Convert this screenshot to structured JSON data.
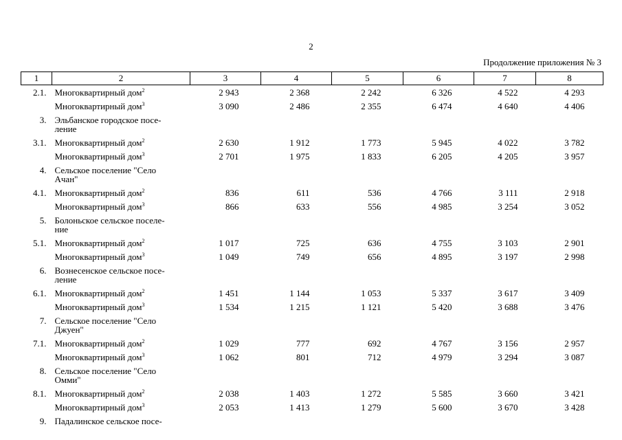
{
  "page_number": "2",
  "caption": "Продолжение приложения № 3",
  "table": {
    "header": [
      "1",
      "2",
      "3",
      "4",
      "5",
      "6",
      "7",
      "8"
    ],
    "rows": [
      {
        "num": "2.1.",
        "name": "Многоквартирный дом",
        "note": "2",
        "values": [
          "2 943",
          "2 368",
          "2 242",
          "6 326",
          "4 522",
          "4 293"
        ]
      },
      {
        "name": "Многоквартирный дом",
        "note": "3",
        "values": [
          "3 090",
          "2 486",
          "2 355",
          "6 474",
          "4 640",
          "4 406"
        ]
      },
      {
        "num": "3.",
        "name": "Эльбанское городское посе-\nление"
      },
      {
        "num": "3.1.",
        "name": "Многоквартирный дом",
        "note": "2",
        "values": [
          "2 630",
          "1 912",
          "1 773",
          "5 945",
          "4 022",
          "3 782"
        ]
      },
      {
        "name": "Многоквартирный дом",
        "note": "3",
        "values": [
          "2 701",
          "1 975",
          "1 833",
          "6 205",
          "4 205",
          "3 957"
        ]
      },
      {
        "num": "4.",
        "name": "Сельское поселение \"Село\nАчан\""
      },
      {
        "num": "4.1.",
        "name": "Многоквартирный дом",
        "note": "2",
        "values": [
          "836",
          "611",
          "536",
          "4 766",
          "3 111",
          "2 918"
        ]
      },
      {
        "name": "Многоквартирный дом",
        "note": "3",
        "values": [
          "866",
          "633",
          "556",
          "4 985",
          "3 254",
          "3 052"
        ]
      },
      {
        "num": "5.",
        "name": "Болоньское сельское поселе-\nние"
      },
      {
        "num": "5.1.",
        "name": "Многоквартирный дом",
        "note": "2",
        "values": [
          "1 017",
          "725",
          "636",
          "4 755",
          "3 103",
          "2 901"
        ]
      },
      {
        "name": "Многоквартирный дом",
        "note": "3",
        "values": [
          "1 049",
          "749",
          "656",
          "4 895",
          "3 197",
          "2 998"
        ]
      },
      {
        "num": "6.",
        "name": "Вознесенское сельское посе-\nление"
      },
      {
        "num": "6.1.",
        "name": "Многоквартирный дом",
        "note": "2",
        "values": [
          "1 451",
          "1 144",
          "1 053",
          "5 337",
          "3 617",
          "3 409"
        ]
      },
      {
        "name": "Многоквартирный дом",
        "note": "3",
        "values": [
          "1 534",
          "1 215",
          "1 121",
          "5 420",
          "3 688",
          "3 476"
        ]
      },
      {
        "num": "7.",
        "name": "Сельское поселение \"Село\nДжуен\""
      },
      {
        "num": "7.1.",
        "name": "Многоквартирный дом",
        "note": "2",
        "values": [
          "1 029",
          "777",
          "692",
          "4 767",
          "3 156",
          "2 957"
        ]
      },
      {
        "name": "Многоквартирный дом",
        "note": "3",
        "values": [
          "1 062",
          "801",
          "712",
          "4 979",
          "3 294",
          "3 087"
        ]
      },
      {
        "num": "8.",
        "name": "Сельское поселение \"Село\nОмми\""
      },
      {
        "num": "8.1.",
        "name": "Многоквартирный дом",
        "note": "2",
        "values": [
          "2 038",
          "1 403",
          "1 272",
          "5 585",
          "3 660",
          "3 421"
        ]
      },
      {
        "name": "Многоквартирный дом",
        "note": "3",
        "values": [
          "2 053",
          "1 413",
          "1 279",
          "5 600",
          "3 670",
          "3 428"
        ]
      },
      {
        "num": "9.",
        "name": "Падалинское сельское посе-"
      }
    ]
  }
}
